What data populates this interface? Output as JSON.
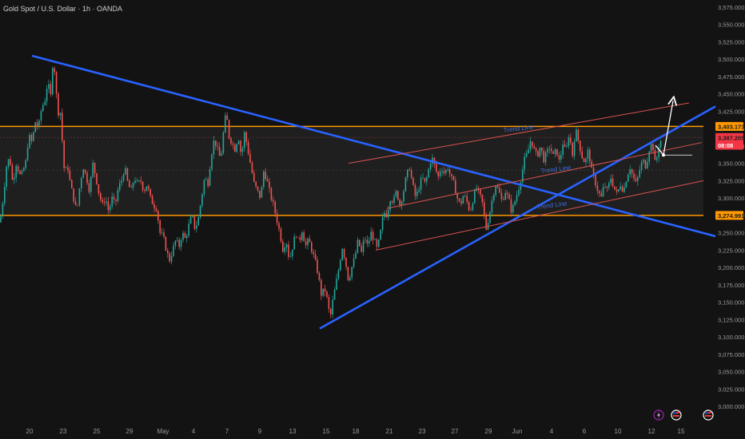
{
  "header": {
    "title": "Gold Spot / U.S. Dollar · 1h · OANDA"
  },
  "colors": {
    "background": "#131313",
    "up_candle": "#26a69a",
    "down_candle": "#ef5350",
    "trendline_blue": "#2962ff",
    "channel_red": "#d9534f",
    "zone_orange": "#ff9800",
    "price_label_red": "#f23645",
    "arrow_white": "#ffffff"
  },
  "chart_data": {
    "type": "candlestick",
    "title": "Gold Spot / U.S. Dollar · 1h · OANDA",
    "ylim": [
      3000,
      3575
    ],
    "y_ticks": [
      "3,575.000",
      "3,550.000",
      "3,525.000",
      "3,500.000",
      "3,475.000",
      "3,450.000",
      "3,425.000",
      "3,400.000",
      "3,375.000",
      "3,350.000",
      "3,325.000",
      "3,300.000",
      "3,275.000",
      "3,250.000",
      "3,225.000",
      "3,200.000",
      "3,175.000",
      "3,150.000",
      "3,125.000",
      "3,100.000",
      "3,075.000",
      "3,050.000",
      "3,025.000",
      "3,000.000"
    ],
    "x_ticks": [
      "20",
      "23",
      "25",
      "29",
      "May",
      "4",
      "7",
      "9",
      "13",
      "15",
      "18",
      "21",
      "23",
      "27",
      "29",
      "Jun",
      "4",
      "6",
      "10",
      "12",
      "15"
    ],
    "price_labels": [
      {
        "text": "3,403.173",
        "value": 3403.173,
        "color": "#ff9800"
      },
      {
        "text": "3,387.205",
        "value": 3387.205,
        "color": "#f23645"
      },
      {
        "text": "08:08",
        "value": 3376,
        "color": "#f23645"
      },
      {
        "text": "3,274.991",
        "value": 3274.991,
        "color": "#ff9800"
      }
    ],
    "zone": {
      "top": 3403.173,
      "bottom": 3274.991
    },
    "current_price": 3387.205,
    "trend_line_labels": [
      "Trend Line",
      "Trend Line",
      "Trend Line"
    ],
    "price_path": [
      [
        0,
        3265
      ],
      [
        4,
        3300
      ],
      [
        8,
        3345
      ],
      [
        12,
        3360
      ],
      [
        16,
        3320
      ],
      [
        20,
        3350
      ],
      [
        26,
        3330
      ],
      [
        32,
        3350
      ],
      [
        36,
        3390
      ],
      [
        40,
        3380
      ],
      [
        44,
        3410
      ],
      [
        48,
        3400
      ],
      [
        52,
        3430
      ],
      [
        56,
        3440
      ],
      [
        60,
        3470
      ],
      [
        63,
        3440
      ],
      [
        66,
        3495
      ],
      [
        69,
        3480
      ],
      [
        72,
        3420
      ],
      [
        75,
        3430
      ],
      [
        78,
        3380
      ],
      [
        81,
        3330
      ],
      [
        84,
        3350
      ],
      [
        88,
        3320
      ],
      [
        92,
        3300
      ],
      [
        96,
        3280
      ],
      [
        100,
        3320
      ],
      [
        104,
        3345
      ],
      [
        108,
        3330
      ],
      [
        112,
        3310
      ],
      [
        116,
        3350
      ],
      [
        120,
        3330
      ],
      [
        124,
        3305
      ],
      [
        128,
        3290
      ],
      [
        132,
        3300
      ],
      [
        136,
        3280
      ],
      [
        140,
        3300
      ],
      [
        144,
        3290
      ],
      [
        148,
        3315
      ],
      [
        152,
        3325
      ],
      [
        156,
        3345
      ],
      [
        160,
        3320
      ],
      [
        164,
        3310
      ],
      [
        168,
        3330
      ],
      [
        172,
        3320
      ],
      [
        176,
        3325
      ],
      [
        180,
        3310
      ],
      [
        184,
        3320
      ],
      [
        188,
        3300
      ],
      [
        192,
        3290
      ],
      [
        196,
        3285
      ],
      [
        200,
        3250
      ],
      [
        204,
        3245
      ],
      [
        208,
        3225
      ],
      [
        212,
        3210
      ],
      [
        216,
        3225
      ],
      [
        220,
        3240
      ],
      [
        224,
        3230
      ],
      [
        228,
        3250
      ],
      [
        232,
        3240
      ],
      [
        236,
        3260
      ],
      [
        240,
        3275
      ],
      [
        244,
        3255
      ],
      [
        248,
        3270
      ],
      [
        252,
        3300
      ],
      [
        256,
        3330
      ],
      [
        260,
        3320
      ],
      [
        264,
        3360
      ],
      [
        268,
        3385
      ],
      [
        272,
        3370
      ],
      [
        276,
        3355
      ],
      [
        280,
        3400
      ],
      [
        283,
        3425
      ],
      [
        286,
        3390
      ],
      [
        290,
        3380
      ],
      [
        294,
        3370
      ],
      [
        298,
        3390
      ],
      [
        302,
        3360
      ],
      [
        306,
        3395
      ],
      [
        310,
        3370
      ],
      [
        314,
        3345
      ],
      [
        318,
        3320
      ],
      [
        322,
        3310
      ],
      [
        326,
        3300
      ],
      [
        330,
        3340
      ],
      [
        334,
        3325
      ],
      [
        338,
        3305
      ],
      [
        342,
        3290
      ],
      [
        346,
        3270
      ],
      [
        350,
        3250
      ],
      [
        354,
        3225
      ],
      [
        358,
        3240
      ],
      [
        362,
        3210
      ],
      [
        366,
        3230
      ],
      [
        370,
        3250
      ],
      [
        374,
        3235
      ],
      [
        378,
        3255
      ],
      [
        382,
        3230
      ],
      [
        386,
        3240
      ],
      [
        390,
        3225
      ],
      [
        394,
        3210
      ],
      [
        398,
        3190
      ],
      [
        402,
        3160
      ],
      [
        406,
        3170
      ],
      [
        410,
        3150
      ],
      [
        413,
        3125
      ],
      [
        416,
        3150
      ],
      [
        420,
        3175
      ],
      [
        424,
        3200
      ],
      [
        428,
        3230
      ],
      [
        432,
        3210
      ],
      [
        436,
        3180
      ],
      [
        440,
        3200
      ],
      [
        444,
        3215
      ],
      [
        448,
        3240
      ],
      [
        452,
        3220
      ],
      [
        456,
        3245
      ],
      [
        460,
        3230
      ],
      [
        464,
        3250
      ],
      [
        468,
        3240
      ],
      [
        472,
        3225
      ],
      [
        476,
        3250
      ],
      [
        480,
        3280
      ],
      [
        484,
        3275
      ],
      [
        488,
        3300
      ],
      [
        492,
        3295
      ],
      [
        496,
        3310
      ],
      [
        500,
        3290
      ],
      [
        504,
        3305
      ],
      [
        508,
        3330
      ],
      [
        512,
        3345
      ],
      [
        516,
        3320
      ],
      [
        520,
        3300
      ],
      [
        524,
        3315
      ],
      [
        528,
        3330
      ],
      [
        532,
        3320
      ],
      [
        536,
        3340
      ],
      [
        540,
        3360
      ],
      [
        544,
        3345
      ],
      [
        548,
        3330
      ],
      [
        552,
        3345
      ],
      [
        556,
        3335
      ],
      [
        560,
        3345
      ],
      [
        564,
        3330
      ],
      [
        568,
        3320
      ],
      [
        572,
        3300
      ],
      [
        576,
        3290
      ],
      [
        580,
        3305
      ],
      [
        584,
        3295
      ],
      [
        588,
        3280
      ],
      [
        592,
        3300
      ],
      [
        596,
        3315
      ],
      [
        600,
        3305
      ],
      [
        604,
        3290
      ],
      [
        608,
        3255
      ],
      [
        612,
        3275
      ],
      [
        616,
        3300
      ],
      [
        620,
        3320
      ],
      [
        624,
        3310
      ],
      [
        628,
        3295
      ],
      [
        632,
        3310
      ],
      [
        636,
        3300
      ],
      [
        640,
        3280
      ],
      [
        644,
        3295
      ],
      [
        648,
        3310
      ],
      [
        652,
        3330
      ],
      [
        656,
        3355
      ],
      [
        660,
        3365
      ],
      [
        664,
        3385
      ],
      [
        668,
        3370
      ],
      [
        672,
        3360
      ],
      [
        676,
        3375
      ],
      [
        680,
        3355
      ],
      [
        684,
        3365
      ],
      [
        688,
        3375
      ],
      [
        692,
        3360
      ],
      [
        696,
        3370
      ],
      [
        700,
        3350
      ],
      [
        704,
        3380
      ],
      [
        708,
        3365
      ],
      [
        712,
        3395
      ],
      [
        716,
        3360
      ],
      [
        720,
        3400
      ],
      [
        724,
        3380
      ],
      [
        728,
        3360
      ],
      [
        732,
        3350
      ],
      [
        736,
        3370
      ],
      [
        740,
        3340
      ],
      [
        744,
        3325
      ],
      [
        748,
        3310
      ],
      [
        752,
        3300
      ],
      [
        756,
        3320
      ],
      [
        760,
        3310
      ],
      [
        764,
        3330
      ],
      [
        768,
        3315
      ],
      [
        772,
        3305
      ],
      [
        776,
        3320
      ],
      [
        780,
        3310
      ],
      [
        784,
        3330
      ],
      [
        788,
        3345
      ],
      [
        792,
        3330
      ],
      [
        796,
        3320
      ],
      [
        800,
        3340
      ],
      [
        804,
        3355
      ],
      [
        808,
        3345
      ],
      [
        812,
        3370
      ],
      [
        816,
        3380
      ],
      [
        818,
        3365
      ],
      [
        820,
        3345
      ],
      [
        824,
        3375
      ],
      [
        828,
        3387
      ]
    ],
    "trend_lines": [
      {
        "name": "blue-descending",
        "points": [
          [
            40,
            3505
          ],
          [
            895,
            3245
          ]
        ],
        "color": "#2962ff"
      },
      {
        "name": "blue-ascending",
        "points": [
          [
            400,
            3112
          ],
          [
            895,
            3432
          ]
        ],
        "color": "#2962ff"
      },
      {
        "name": "red-channel-upper",
        "points": [
          [
            436,
            3350
          ],
          [
            862,
            3437
          ]
        ],
        "color": "#d9534f"
      },
      {
        "name": "red-channel-middle",
        "points": [
          [
            484,
            3285
          ],
          [
            878,
            3380
          ]
        ],
        "color": "#d9534f"
      },
      {
        "name": "red-channel-lower",
        "points": [
          [
            470,
            3225
          ],
          [
            880,
            3325
          ]
        ],
        "color": "#d9534f"
      }
    ],
    "projection": {
      "points": [
        [
          820,
          3376
        ],
        [
          830,
          3362
        ],
        [
          842,
          3440
        ]
      ],
      "color": "#ffffff"
    },
    "grid": false
  }
}
